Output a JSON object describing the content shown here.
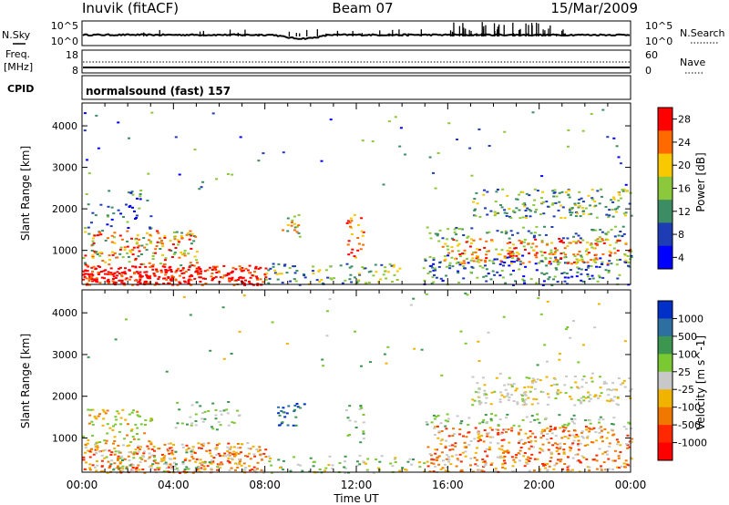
{
  "header": {
    "station": "Inuvik (fitACF)",
    "beam": "Beam 07",
    "date": "15/Mar/2009"
  },
  "noise_panel": {
    "left_label": "N.Sky",
    "left_ticks": [
      "10^5",
      "10^0"
    ],
    "right_ticks": [
      "10^5",
      "10^0"
    ],
    "right_label": "N.Search"
  },
  "freq_panel": {
    "left_label_1": "Freq.",
    "left_label_2": "[MHz]",
    "left_ticks": [
      "18",
      "8"
    ],
    "right_ticks": [
      "60",
      "0"
    ],
    "right_label": "Nave"
  },
  "cpid_panel": {
    "label": "CPID",
    "text": "normalsound (fast) 157"
  },
  "chart_data": [
    {
      "type": "heatmap",
      "parameter": "Power",
      "ylabel": "Slant Range [km]",
      "y_ticks": [
        1000,
        2000,
        3000,
        4000
      ],
      "ylim": [
        180,
        4550
      ],
      "x_ticks": [
        "00:00",
        "04:00",
        "08:00",
        "12:00",
        "16:00",
        "20:00",
        "00:00"
      ],
      "xlim_hours": [
        0,
        24
      ],
      "colorbar": {
        "label": "Power [dB]",
        "ticks": [
          "28",
          "24",
          "20",
          "16",
          "12",
          "8",
          "4"
        ],
        "colors": [
          "#ff0000",
          "#ff6a00",
          "#f8c800",
          "#8cc83c",
          "#3c8c64",
          "#1e3cb4",
          "#0000ff"
        ]
      }
    },
    {
      "type": "heatmap",
      "parameter": "Velocity",
      "ylabel": "Slant Range [km]",
      "y_ticks": [
        1000,
        2000,
        3000,
        4000
      ],
      "ylim": [
        180,
        4550
      ],
      "x_ticks": [
        "00:00",
        "04:00",
        "08:00",
        "12:00",
        "16:00",
        "20:00",
        "00:00"
      ],
      "xlim_hours": [
        0,
        24
      ],
      "xlabel": "Time UT",
      "colorbar": {
        "label": "Velocity [m s^-1]",
        "ticks": [
          "1000",
          "500",
          "100",
          "25",
          "-25",
          "-100",
          "-500",
          "-1000"
        ],
        "colors": [
          "#0030c8",
          "#2d6fa0",
          "#3c9650",
          "#7ac832",
          "#c8c8c8",
          "#f0b400",
          "#f07800",
          "#ff2800",
          "#ff0000"
        ]
      }
    }
  ]
}
